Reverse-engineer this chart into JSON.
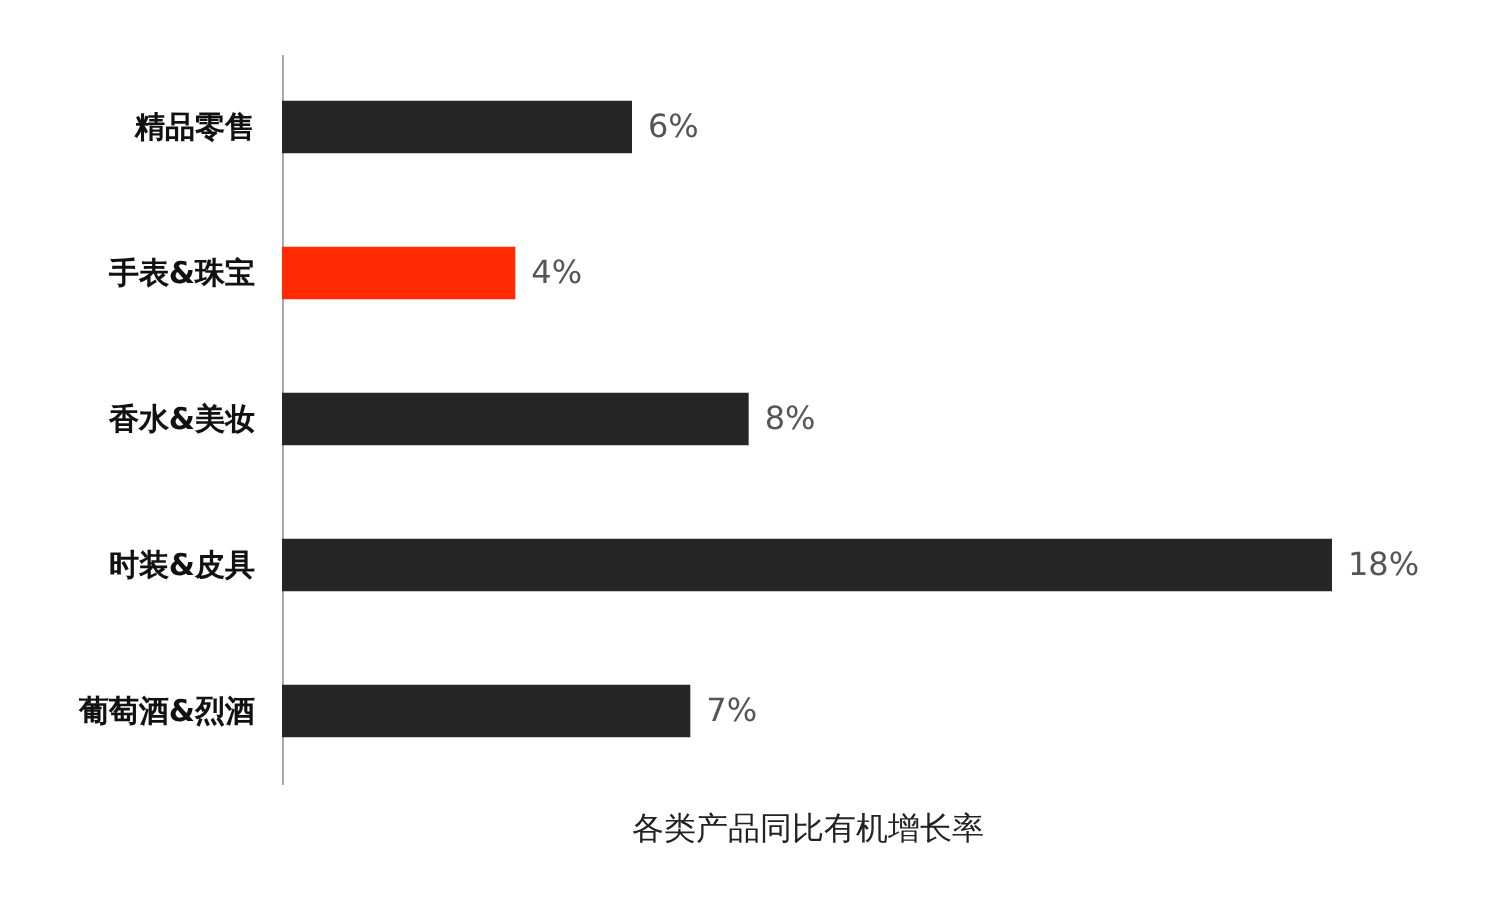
{
  "chart_data": {
    "type": "bar",
    "orientation": "horizontal",
    "xlabel": "各类产品同比有机增长率",
    "categories": [
      "精品零售",
      "手表&珠宝",
      "香水&美妆",
      "时装&皮具",
      "葡萄酒&烈酒"
    ],
    "values": [
      6,
      4,
      8,
      18,
      7
    ],
    "colors": [
      "#262626",
      "#ff2a00",
      "#262626",
      "#262626",
      "#262626"
    ],
    "value_labels": [
      "6%",
      "4%",
      "8%",
      "18%",
      "7%"
    ]
  }
}
